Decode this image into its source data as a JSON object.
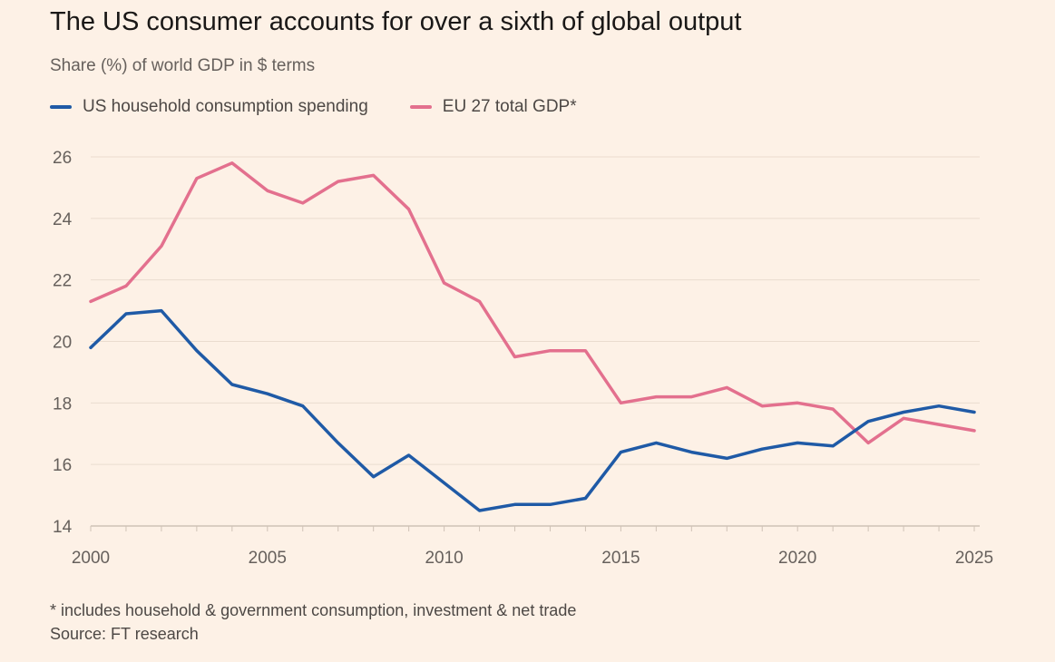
{
  "header": {
    "title": "The US consumer accounts for over a sixth of global output",
    "subtitle": "Share (%) of world GDP in $ terms"
  },
  "footer": {
    "footnote": "* includes household & government consumption, investment & net trade",
    "source": "Source: FT research"
  },
  "colors": {
    "background": "#fdf1e6",
    "grid": "#eadccf",
    "axis": "#cfc2b6"
  },
  "chart_data": {
    "type": "line",
    "title": "The US consumer accounts for over a sixth of global output",
    "subtitle": "Share (%) of world GDP in $ terms",
    "xlabel": "",
    "ylabel": "",
    "xlim": [
      2000,
      2025
    ],
    "ylim": [
      14,
      26
    ],
    "yticks": [
      14,
      16,
      18,
      20,
      22,
      24,
      26
    ],
    "xticks": [
      2000,
      2005,
      2010,
      2015,
      2020,
      2025
    ],
    "grid": true,
    "legend": "top-left",
    "x": [
      2000,
      2001,
      2002,
      2003,
      2004,
      2005,
      2006,
      2007,
      2008,
      2009,
      2010,
      2011,
      2012,
      2013,
      2014,
      2015,
      2016,
      2017,
      2018,
      2019,
      2020,
      2021,
      2022,
      2023,
      2024,
      2025
    ],
    "series": [
      {
        "name": "US household consumption spending",
        "color": "#1f5aa6",
        "values": [
          19.8,
          20.9,
          21.0,
          19.7,
          18.6,
          18.3,
          17.9,
          16.7,
          15.6,
          16.3,
          15.4,
          14.5,
          14.7,
          14.7,
          14.9,
          16.4,
          16.7,
          16.4,
          16.2,
          16.5,
          16.7,
          16.6,
          17.4,
          17.7,
          17.9,
          17.7
        ]
      },
      {
        "name": "EU 27 total GDP*",
        "color": "#e3708e",
        "values": [
          21.3,
          21.8,
          23.1,
          25.3,
          25.8,
          24.9,
          24.5,
          25.2,
          25.4,
          24.3,
          21.9,
          21.3,
          19.5,
          19.7,
          19.7,
          18.0,
          18.2,
          18.2,
          18.5,
          17.9,
          18.0,
          17.8,
          16.7,
          17.5,
          17.3,
          17.1
        ]
      }
    ]
  }
}
